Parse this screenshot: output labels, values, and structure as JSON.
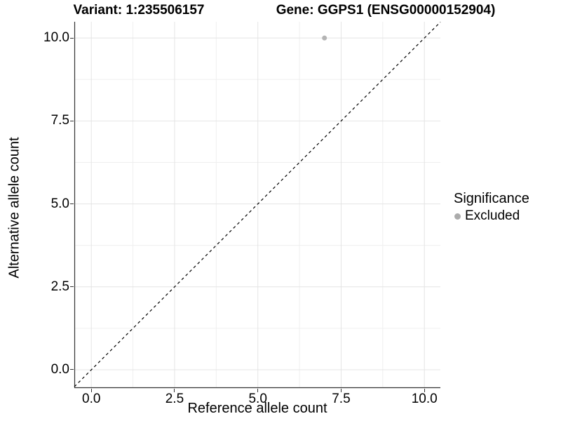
{
  "titles": {
    "variant": "Variant: 1:235506157",
    "gene": "Gene: GGPS1 (ENSG00000152904)"
  },
  "chart_data": {
    "type": "scatter",
    "xlabel": "Reference allele count",
    "ylabel": "Alternative allele count",
    "xlim": [
      -0.51,
      10.48
    ],
    "ylim": [
      -0.55,
      10.49
    ],
    "x_ticks": [
      0.0,
      2.5,
      5.0,
      7.5,
      10.0
    ],
    "y_ticks": [
      0.0,
      2.5,
      5.0,
      7.5,
      10.0
    ],
    "x_minor_ticks": [
      1.25,
      3.75,
      6.25,
      8.75
    ],
    "y_minor_ticks": [
      1.25,
      3.75,
      6.25,
      8.75
    ],
    "tick_decimals": 1,
    "points": [
      {
        "x": 7,
        "y": 10,
        "significance": "Excluded",
        "color": "#b4b4b4",
        "radius": 3.5
      }
    ],
    "identity_line": {
      "slope": 1,
      "intercept": 0,
      "style": "dashed",
      "color": "#000000"
    },
    "grid": {
      "major_color": "#e4e4e4",
      "minor_color": "#efefef",
      "background": "#ffffff"
    },
    "axis": {
      "line_color": "#333333",
      "text_color": "#000000"
    },
    "legend": {
      "title": "Significance",
      "position": "right",
      "items": [
        {
          "label": "Excluded",
          "color": "#ababab"
        }
      ]
    }
  }
}
